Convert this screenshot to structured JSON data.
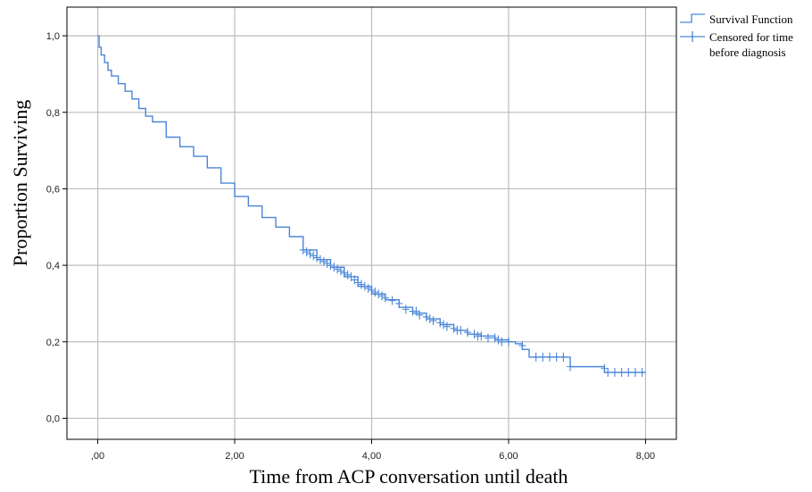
{
  "chart_data": {
    "type": "line",
    "title": "",
    "xlabel": "Time from ACP conversation until death",
    "ylabel": "Proportion Surviving",
    "xlim": [
      -0.45,
      8.45
    ],
    "ylim": [
      -0.055,
      1.075
    ],
    "xticks": [
      0,
      2,
      4,
      6,
      8
    ],
    "xtick_labels": [
      ",00",
      "2,00",
      "4,00",
      "6,00",
      "8,00"
    ],
    "yticks": [
      0,
      0.2,
      0.4,
      0.6,
      0.8,
      1.0
    ],
    "ytick_labels": [
      "0,0",
      "0,2",
      "0,4",
      "0,6",
      "0,8",
      "1,0"
    ],
    "grid": true,
    "legend_position": "top-right",
    "colors": {
      "series": "#4a86d8",
      "grid": "#bdbdbd",
      "axis": "#000000"
    },
    "series": [
      {
        "name": "Survival Function",
        "step": true,
        "x": [
          0,
          0.02,
          0.05,
          0.1,
          0.15,
          0.2,
          0.3,
          0.4,
          0.5,
          0.6,
          0.7,
          0.8,
          1.0,
          1.2,
          1.4,
          1.6,
          1.8,
          2.0,
          2.2,
          2.4,
          2.6,
          2.8,
          3.0,
          3.2,
          3.4,
          3.6,
          3.8,
          4.0,
          4.2,
          4.4,
          4.6,
          4.8,
          5.0,
          5.2,
          5.4,
          5.6,
          5.8,
          6.0,
          6.1,
          6.2,
          6.3,
          6.4,
          6.5,
          6.6,
          6.7,
          6.8,
          6.9,
          7.0,
          7.2,
          7.4,
          7.5,
          7.6,
          7.7,
          7.8,
          7.9,
          8.0
        ],
        "y": [
          1.0,
          0.97,
          0.95,
          0.93,
          0.91,
          0.895,
          0.875,
          0.855,
          0.835,
          0.81,
          0.79,
          0.775,
          0.735,
          0.71,
          0.685,
          0.655,
          0.615,
          0.58,
          0.555,
          0.525,
          0.5,
          0.475,
          0.44,
          0.415,
          0.395,
          0.37,
          0.345,
          0.325,
          0.31,
          0.29,
          0.275,
          0.26,
          0.245,
          0.23,
          0.22,
          0.215,
          0.205,
          0.2,
          0.195,
          0.18,
          0.16,
          0.16,
          0.16,
          0.16,
          0.16,
          0.16,
          0.135,
          0.135,
          0.135,
          0.12,
          0.12,
          0.12,
          0.12,
          0.12,
          0.12,
          0.12
        ]
      },
      {
        "name": "Censored for time before diagnosis",
        "marker": "+",
        "x": [
          3.0,
          3.05,
          3.1,
          3.15,
          3.2,
          3.25,
          3.3,
          3.35,
          3.4,
          3.45,
          3.5,
          3.55,
          3.6,
          3.65,
          3.7,
          3.75,
          3.8,
          3.85,
          3.9,
          3.95,
          4.0,
          4.05,
          4.1,
          4.15,
          4.2,
          4.3,
          4.4,
          4.5,
          4.6,
          4.65,
          4.7,
          4.8,
          4.85,
          4.9,
          5.0,
          5.05,
          5.1,
          5.2,
          5.25,
          5.3,
          5.4,
          5.5,
          5.55,
          5.6,
          5.7,
          5.8,
          5.85,
          5.9,
          6.0,
          6.2,
          6.4,
          6.5,
          6.6,
          6.7,
          6.8,
          6.9,
          7.4,
          7.45,
          7.55,
          7.65,
          7.75,
          7.85,
          7.95
        ],
        "y": [
          0.44,
          0.435,
          0.43,
          0.425,
          0.42,
          0.415,
          0.41,
          0.405,
          0.4,
          0.395,
          0.39,
          0.385,
          0.38,
          0.375,
          0.37,
          0.362,
          0.355,
          0.35,
          0.345,
          0.34,
          0.335,
          0.33,
          0.325,
          0.32,
          0.315,
          0.308,
          0.3,
          0.285,
          0.28,
          0.28,
          0.27,
          0.265,
          0.26,
          0.255,
          0.25,
          0.245,
          0.24,
          0.235,
          0.23,
          0.23,
          0.225,
          0.22,
          0.215,
          0.215,
          0.21,
          0.21,
          0.205,
          0.2,
          0.2,
          0.19,
          0.16,
          0.16,
          0.16,
          0.16,
          0.16,
          0.135,
          0.13,
          0.12,
          0.12,
          0.12,
          0.12,
          0.12,
          0.12
        ]
      }
    ]
  }
}
